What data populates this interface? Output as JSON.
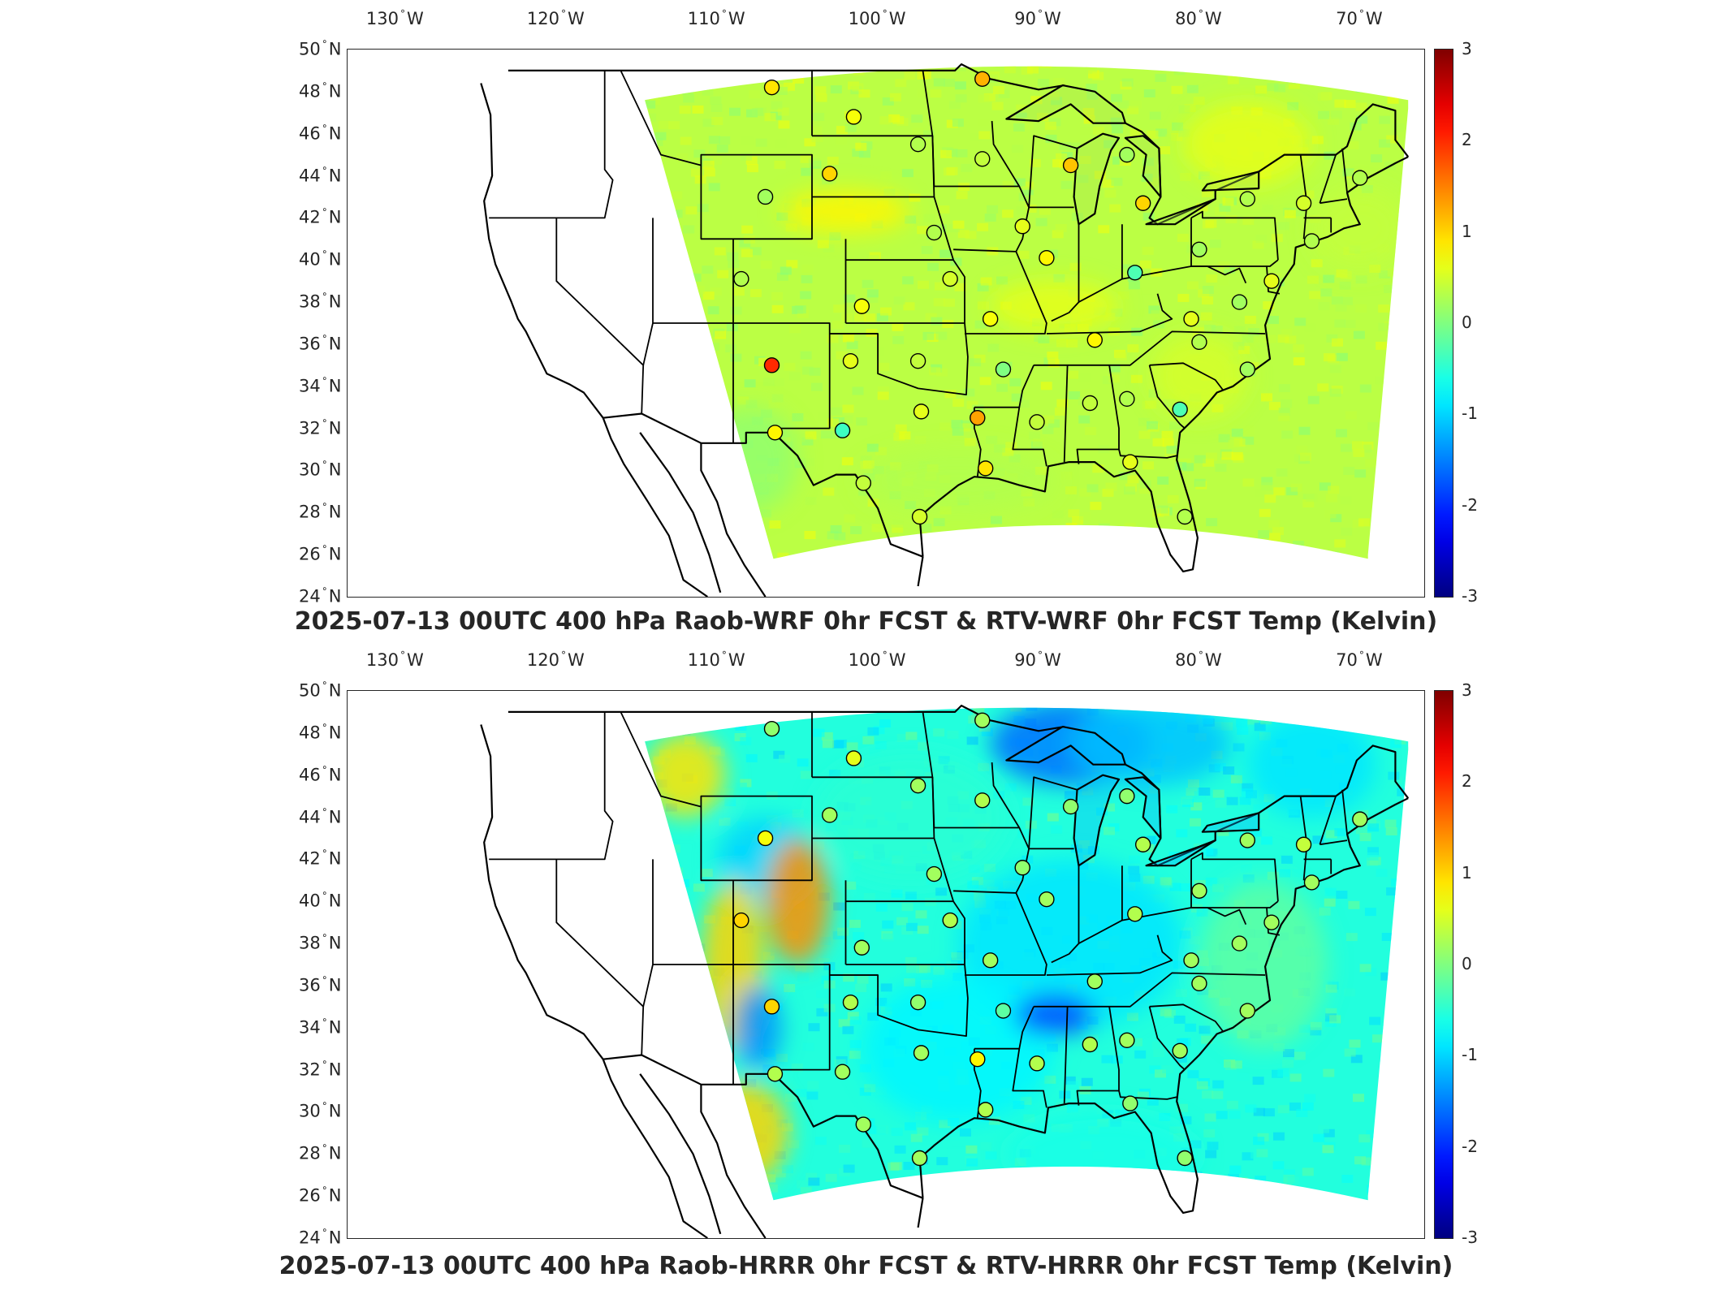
{
  "panels": [
    {
      "id": "wrf",
      "title": "2025-07-13 00UTC 400 hPa Raob-WRF 0hr FCST & RTV-WRF 0hr FCST Temp (Kelvin)",
      "scheme": "mostly-neutral"
    },
    {
      "id": "hrrr",
      "title": "2025-07-13 00UTC 400 hPa Raob-HRRR 0hr FCST & RTV-HRRR 0hr FCST Temp (Kelvin)",
      "scheme": "cool-bias"
    }
  ],
  "axes": {
    "lon_ticks": [
      {
        "value": -130,
        "num": "130",
        "hem": "W"
      },
      {
        "value": -120,
        "num": "120",
        "hem": "W"
      },
      {
        "value": -110,
        "num": "110",
        "hem": "W"
      },
      {
        "value": -100,
        "num": "100",
        "hem": "W"
      },
      {
        "value": -90,
        "num": "90",
        "hem": "W"
      },
      {
        "value": -80,
        "num": "80",
        "hem": "W"
      },
      {
        "value": -70,
        "num": "70",
        "hem": "W"
      }
    ],
    "lat_ticks": [
      {
        "value": 50,
        "num": "50",
        "hem": "N"
      },
      {
        "value": 48,
        "num": "48",
        "hem": "N"
      },
      {
        "value": 46,
        "num": "46",
        "hem": "N"
      },
      {
        "value": 44,
        "num": "44",
        "hem": "N"
      },
      {
        "value": 42,
        "num": "42",
        "hem": "N"
      },
      {
        "value": 40,
        "num": "40",
        "hem": "N"
      },
      {
        "value": 38,
        "num": "38",
        "hem": "N"
      },
      {
        "value": 36,
        "num": "36",
        "hem": "N"
      },
      {
        "value": 34,
        "num": "34",
        "hem": "N"
      },
      {
        "value": 32,
        "num": "32",
        "hem": "N"
      },
      {
        "value": 30,
        "num": "30",
        "hem": "N"
      },
      {
        "value": 28,
        "num": "28",
        "hem": "N"
      },
      {
        "value": 26,
        "num": "26",
        "hem": "N"
      },
      {
        "value": 24,
        "num": "24",
        "hem": "N"
      }
    ],
    "lon_range": [
      -133,
      -66
    ],
    "lat_range": [
      24,
      50
    ]
  },
  "colorbar": {
    "ticks": [
      "3",
      "2",
      "1",
      "0",
      "-1",
      "-2",
      "-3"
    ],
    "range": [
      -3,
      3
    ],
    "colormap": "jet"
  },
  "colors": {
    "axis": "#262626",
    "coast": "#000000"
  },
  "stations": {
    "wrf": [
      {
        "lon": -106.6,
        "lat": 48.2,
        "v": 0.9
      },
      {
        "lon": -101.5,
        "lat": 46.8,
        "v": 0.7
      },
      {
        "lon": -97.5,
        "lat": 45.5,
        "v": 0.3
      },
      {
        "lon": -93.5,
        "lat": 48.6,
        "v": 1.2
      },
      {
        "lon": -93.5,
        "lat": 44.8,
        "v": 0.4
      },
      {
        "lon": -107.0,
        "lat": 43.0,
        "v": 0.2
      },
      {
        "lon": -103.0,
        "lat": 44.1,
        "v": 1.0
      },
      {
        "lon": -88.0,
        "lat": 44.5,
        "v": 1.1
      },
      {
        "lon": -84.5,
        "lat": 45.0,
        "v": 0.2
      },
      {
        "lon": -83.5,
        "lat": 42.7,
        "v": 1.0
      },
      {
        "lon": -96.5,
        "lat": 41.3,
        "v": 0.3
      },
      {
        "lon": -91.0,
        "lat": 41.6,
        "v": 0.6
      },
      {
        "lon": -89.5,
        "lat": 40.1,
        "v": 0.8
      },
      {
        "lon": -84.0,
        "lat": 39.4,
        "v": -0.3
      },
      {
        "lon": -80.0,
        "lat": 40.5,
        "v": 0.2
      },
      {
        "lon": -77.0,
        "lat": 42.9,
        "v": 0.3
      },
      {
        "lon": -73.5,
        "lat": 42.7,
        "v": 0.5
      },
      {
        "lon": -70.0,
        "lat": 43.9,
        "v": 0.3
      },
      {
        "lon": -73.0,
        "lat": 40.9,
        "v": 0.3
      },
      {
        "lon": -75.5,
        "lat": 39.0,
        "v": 0.6
      },
      {
        "lon": -77.5,
        "lat": 38.0,
        "v": 0.2
      },
      {
        "lon": -108.5,
        "lat": 39.1,
        "v": 0.3
      },
      {
        "lon": -101.0,
        "lat": 37.8,
        "v": 0.7
      },
      {
        "lon": -95.5,
        "lat": 39.1,
        "v": 0.5
      },
      {
        "lon": -93.0,
        "lat": 37.2,
        "v": 0.7
      },
      {
        "lon": -86.5,
        "lat": 36.2,
        "v": 0.8
      },
      {
        "lon": -80.5,
        "lat": 37.2,
        "v": 0.6
      },
      {
        "lon": -80.0,
        "lat": 36.1,
        "v": 0.3
      },
      {
        "lon": -77.0,
        "lat": 34.8,
        "v": 0.2
      },
      {
        "lon": -106.6,
        "lat": 35.0,
        "v": 2.0
      },
      {
        "lon": -101.7,
        "lat": 35.2,
        "v": 0.6
      },
      {
        "lon": -97.5,
        "lat": 35.2,
        "v": 0.4
      },
      {
        "lon": -92.2,
        "lat": 34.8,
        "v": 0.0
      },
      {
        "lon": -97.3,
        "lat": 32.8,
        "v": 0.6
      },
      {
        "lon": -93.8,
        "lat": 32.5,
        "v": 1.3
      },
      {
        "lon": -90.1,
        "lat": 32.3,
        "v": 0.4
      },
      {
        "lon": -86.8,
        "lat": 33.2,
        "v": 0.4
      },
      {
        "lon": -84.5,
        "lat": 33.4,
        "v": 0.3
      },
      {
        "lon": -81.2,
        "lat": 32.9,
        "v": -0.3
      },
      {
        "lon": -106.4,
        "lat": 31.8,
        "v": 0.8
      },
      {
        "lon": -102.2,
        "lat": 31.9,
        "v": -0.4
      },
      {
        "lon": -100.9,
        "lat": 29.4,
        "v": 0.4
      },
      {
        "lon": -97.4,
        "lat": 27.8,
        "v": 0.5
      },
      {
        "lon": -93.3,
        "lat": 30.1,
        "v": 0.9
      },
      {
        "lon": -84.3,
        "lat": 30.4,
        "v": 0.6
      },
      {
        "lon": -80.9,
        "lat": 27.8,
        "v": 0.3
      }
    ],
    "hrrr": [
      {
        "lon": -106.6,
        "lat": 48.2,
        "v": 0.1
      },
      {
        "lon": -101.5,
        "lat": 46.8,
        "v": 0.6
      },
      {
        "lon": -97.5,
        "lat": 45.5,
        "v": 0.2
      },
      {
        "lon": -93.5,
        "lat": 48.6,
        "v": 0.2
      },
      {
        "lon": -93.5,
        "lat": 44.8,
        "v": 0.3
      },
      {
        "lon": -107.0,
        "lat": 43.0,
        "v": 0.7
      },
      {
        "lon": -103.0,
        "lat": 44.1,
        "v": 0.2
      },
      {
        "lon": -88.0,
        "lat": 44.5,
        "v": 0.1
      },
      {
        "lon": -84.5,
        "lat": 45.0,
        "v": 0.1
      },
      {
        "lon": -83.5,
        "lat": 42.7,
        "v": 0.3
      },
      {
        "lon": -96.5,
        "lat": 41.3,
        "v": 0.2
      },
      {
        "lon": -91.0,
        "lat": 41.6,
        "v": 0.1
      },
      {
        "lon": -89.5,
        "lat": 40.1,
        "v": 0.2
      },
      {
        "lon": -84.0,
        "lat": 39.4,
        "v": 0.3
      },
      {
        "lon": -80.0,
        "lat": 40.5,
        "v": 0.2
      },
      {
        "lon": -77.0,
        "lat": 42.9,
        "v": 0.2
      },
      {
        "lon": -73.5,
        "lat": 42.7,
        "v": 0.4
      },
      {
        "lon": -70.0,
        "lat": 43.9,
        "v": 0.2
      },
      {
        "lon": -73.0,
        "lat": 40.9,
        "v": 0.2
      },
      {
        "lon": -75.5,
        "lat": 39.0,
        "v": 0.2
      },
      {
        "lon": -77.5,
        "lat": 38.0,
        "v": 0.2
      },
      {
        "lon": -108.5,
        "lat": 39.1,
        "v": 1.0
      },
      {
        "lon": -101.0,
        "lat": 37.8,
        "v": 0.2
      },
      {
        "lon": -95.5,
        "lat": 39.1,
        "v": 0.3
      },
      {
        "lon": -93.0,
        "lat": 37.2,
        "v": 0.2
      },
      {
        "lon": -86.5,
        "lat": 36.2,
        "v": 0.2
      },
      {
        "lon": -80.5,
        "lat": 37.2,
        "v": 0.2
      },
      {
        "lon": -80.0,
        "lat": 36.1,
        "v": 0.2
      },
      {
        "lon": -77.0,
        "lat": 34.8,
        "v": 0.2
      },
      {
        "lon": -106.6,
        "lat": 35.0,
        "v": 1.0
      },
      {
        "lon": -101.7,
        "lat": 35.2,
        "v": 0.3
      },
      {
        "lon": -97.5,
        "lat": 35.2,
        "v": 0.1
      },
      {
        "lon": -92.2,
        "lat": 34.8,
        "v": -0.2
      },
      {
        "lon": -97.3,
        "lat": 32.8,
        "v": 0.2
      },
      {
        "lon": -93.8,
        "lat": 32.5,
        "v": 0.8
      },
      {
        "lon": -90.1,
        "lat": 32.3,
        "v": 0.3
      },
      {
        "lon": -86.8,
        "lat": 33.2,
        "v": 0.3
      },
      {
        "lon": -84.5,
        "lat": 33.4,
        "v": 0.2
      },
      {
        "lon": -81.2,
        "lat": 32.9,
        "v": 0.2
      },
      {
        "lon": -106.4,
        "lat": 31.8,
        "v": 0.3
      },
      {
        "lon": -102.2,
        "lat": 31.9,
        "v": 0.2
      },
      {
        "lon": -100.9,
        "lat": 29.4,
        "v": 0.2
      },
      {
        "lon": -97.4,
        "lat": 27.8,
        "v": 0.2
      },
      {
        "lon": -93.3,
        "lat": 30.1,
        "v": 0.3
      },
      {
        "lon": -84.3,
        "lat": 30.4,
        "v": 0.1
      },
      {
        "lon": -80.9,
        "lat": 27.8,
        "v": 0.1
      }
    ]
  },
  "bias_regions": {
    "wrf": [
      {
        "lon": -102,
        "lat": 42.3,
        "rx": 4,
        "ry": 1.0,
        "v": 0.8
      },
      {
        "lon": -89,
        "lat": 37.8,
        "rx": 4,
        "ry": 1.2,
        "v": 0.6
      },
      {
        "lon": -80,
        "lat": 34.5,
        "rx": 3,
        "ry": 2.0,
        "v": 0.5
      },
      {
        "lon": -77,
        "lat": 45.5,
        "rx": 4,
        "ry": 2.0,
        "v": 0.6
      },
      {
        "lon": -70,
        "lat": 41.5,
        "rx": 3,
        "ry": 2.0,
        "v": 0.4
      },
      {
        "lon": -95,
        "lat": 29.5,
        "rx": 6,
        "ry": 1.5,
        "v": 0.3
      },
      {
        "lon": -108,
        "lat": 30.5,
        "rx": 3,
        "ry": 2.5,
        "v": 0.1
      }
    ],
    "hrrr": [
      {
        "lon": -88,
        "lat": 47.5,
        "rx": 5,
        "ry": 2.0,
        "v": -1.6
      },
      {
        "lon": -83,
        "lat": 47.5,
        "rx": 5,
        "ry": 2.0,
        "v": -1.1
      },
      {
        "lon": -73,
        "lat": 46.5,
        "rx": 4,
        "ry": 2.5,
        "v": -0.9
      },
      {
        "lon": -88,
        "lat": 38.0,
        "rx": 7,
        "ry": 4.0,
        "v": -0.9
      },
      {
        "lon": -95,
        "lat": 33.0,
        "rx": 6,
        "ry": 3.5,
        "v": -0.8
      },
      {
        "lon": -89,
        "lat": 34.6,
        "rx": 2.5,
        "ry": 1.0,
        "v": -1.8
      },
      {
        "lon": -107,
        "lat": 42.0,
        "rx": 3,
        "ry": 2.0,
        "v": -1.0
      },
      {
        "lon": -105,
        "lat": 40.0,
        "rx": 2,
        "ry": 3.0,
        "v": 1.4
      },
      {
        "lon": -109,
        "lat": 37.0,
        "rx": 2,
        "ry": 4.0,
        "v": 1.0
      },
      {
        "lon": -107.5,
        "lat": 34.0,
        "rx": 1.5,
        "ry": 2.0,
        "v": -1.4
      },
      {
        "lon": -108.5,
        "lat": 29.0,
        "rx": 3,
        "ry": 2.5,
        "v": 1.0
      },
      {
        "lon": -112,
        "lat": 46.0,
        "rx": 2.5,
        "ry": 2.0,
        "v": 0.9
      },
      {
        "lon": -98,
        "lat": 44.0,
        "rx": 6,
        "ry": 3.0,
        "v": -0.5
      },
      {
        "lon": -76,
        "lat": 37.0,
        "rx": 4,
        "ry": 4.0,
        "v": -0.2
      },
      {
        "lon": -86,
        "lat": 28.0,
        "rx": 6,
        "ry": 2.0,
        "v": -0.6
      }
    ]
  }
}
